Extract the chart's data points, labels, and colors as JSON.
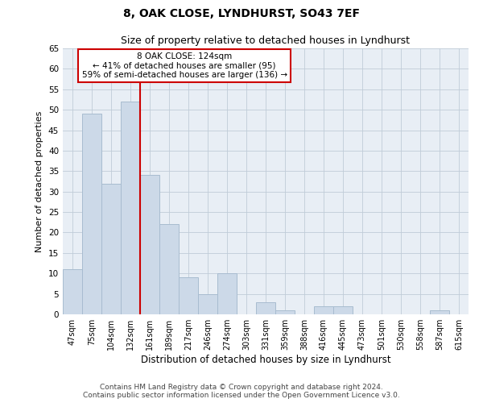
{
  "title": "8, OAK CLOSE, LYNDHURST, SO43 7EF",
  "subtitle": "Size of property relative to detached houses in Lyndhurst",
  "xlabel": "Distribution of detached houses by size in Lyndhurst",
  "ylabel": "Number of detached properties",
  "bar_labels": [
    "47sqm",
    "75sqm",
    "104sqm",
    "132sqm",
    "161sqm",
    "189sqm",
    "217sqm",
    "246sqm",
    "274sqm",
    "303sqm",
    "331sqm",
    "359sqm",
    "388sqm",
    "416sqm",
    "445sqm",
    "473sqm",
    "501sqm",
    "530sqm",
    "558sqm",
    "587sqm",
    "615sqm"
  ],
  "bar_values": [
    11,
    49,
    32,
    52,
    34,
    22,
    9,
    5,
    10,
    0,
    3,
    1,
    0,
    2,
    2,
    0,
    0,
    0,
    0,
    1,
    0
  ],
  "bar_color": "#ccd9e8",
  "bar_edge_color": "#a8bcd0",
  "vline_x": 3,
  "vline_color": "#cc0000",
  "ylim": [
    0,
    65
  ],
  "yticks": [
    0,
    5,
    10,
    15,
    20,
    25,
    30,
    35,
    40,
    45,
    50,
    55,
    60,
    65
  ],
  "annotation_title": "8 OAK CLOSE: 124sqm",
  "annotation_line1": "← 41% of detached houses are smaller (95)",
  "annotation_line2": "59% of semi-detached houses are larger (136) →",
  "annotation_box_color": "#ffffff",
  "annotation_box_edge": "#cc0000",
  "footer1": "Contains HM Land Registry data © Crown copyright and database right 2024.",
  "footer2": "Contains public sector information licensed under the Open Government Licence v3.0.",
  "bg_color": "#ffffff",
  "plot_bg_color": "#e8eef5",
  "grid_color": "#c0ccd8"
}
